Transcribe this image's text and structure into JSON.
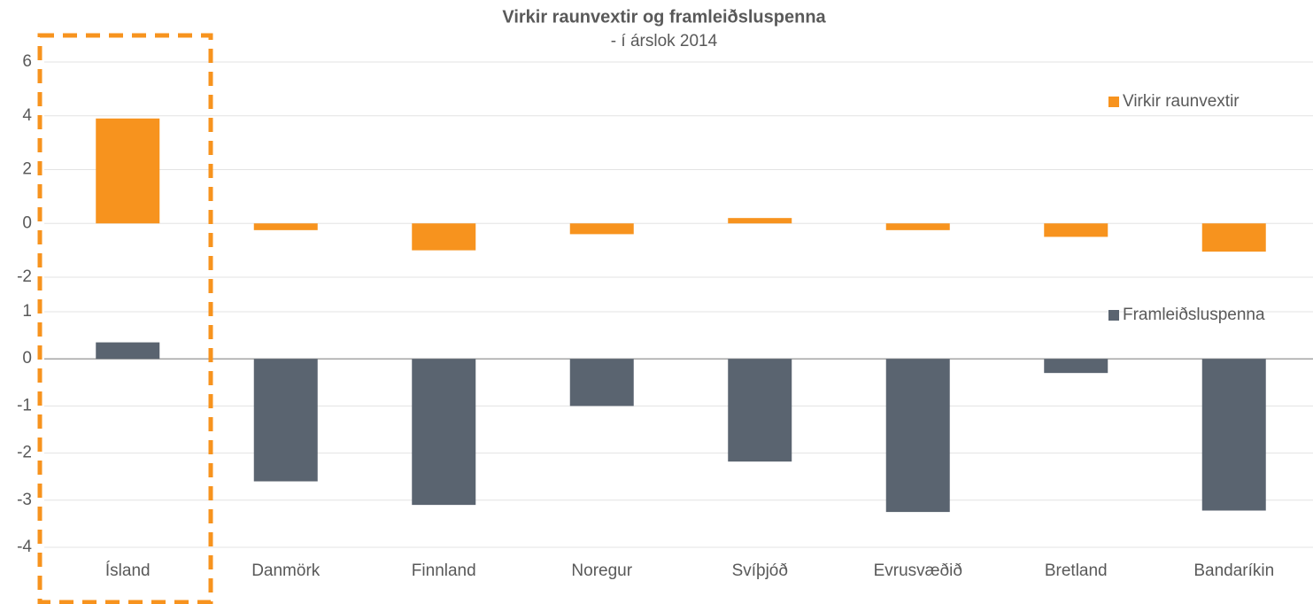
{
  "chart_data": [
    {
      "type": "bar",
      "title": "Virkir raunvextir og framleiðsluspenna",
      "subtitle": "- í árslok 2014",
      "series": [
        {
          "name": "Virkir raunvextir",
          "color": "#f7931e",
          "values": [
            3.9,
            -0.25,
            -1.0,
            -0.4,
            0.2,
            -0.25,
            -0.5,
            -1.05
          ]
        }
      ],
      "ylim": [
        -2,
        6
      ],
      "yticks": [
        -2,
        0,
        2,
        4,
        6
      ],
      "grid": true,
      "legend": "upper right"
    },
    {
      "type": "bar",
      "categories": [
        "Ísland",
        "Danmörk",
        "Finnland",
        "Noregur",
        "Svíþjóð",
        "Evrusvæðið",
        "Bretland",
        "Bandaríkin"
      ],
      "series": [
        {
          "name": "Framleiðsluspenna",
          "color": "#5a6470",
          "values": [
            0.35,
            -2.6,
            -3.1,
            -1.0,
            -2.18,
            -3.25,
            -0.3,
            -3.22
          ]
        }
      ],
      "ylim": [
        -4,
        1
      ],
      "yticks": [
        -4,
        -3,
        -2,
        -1,
        0,
        1
      ],
      "grid": true,
      "legend": "upper right"
    }
  ]
}
